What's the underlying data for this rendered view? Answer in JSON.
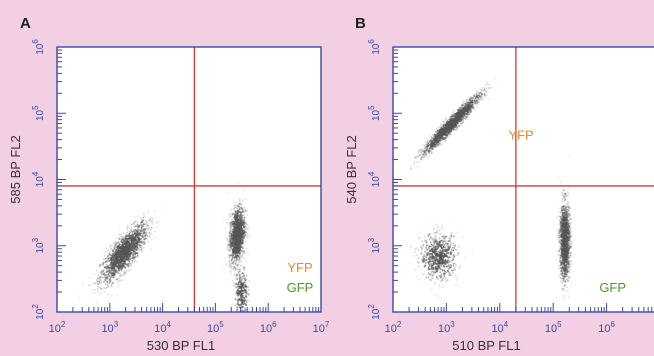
{
  "colors": {
    "background": "#f3cfe3",
    "plot_background": "#ffffff",
    "axis": "#3a4aa3",
    "gate": "#d03a3a",
    "yfp": "#e8892b",
    "gfp": "#4c9a2a",
    "dots": "#555555"
  },
  "chart_data": [
    {
      "type": "scatter",
      "panel_label": "A",
      "xlabel": "530 BP FL1",
      "ylabel": "585 BP FL2",
      "x_scale": "log",
      "y_scale": "log",
      "xlim": [
        100,
        10000000
      ],
      "ylim": [
        100,
        1000000
      ],
      "x_ticks": [
        {
          "base": "10",
          "exp": "2"
        },
        {
          "base": "10",
          "exp": "3"
        },
        {
          "base": "10",
          "exp": "4"
        },
        {
          "base": "10",
          "exp": "5"
        },
        {
          "base": "10",
          "exp": "6"
        },
        {
          "base": "10",
          "exp": "7"
        }
      ],
      "y_ticks": [
        {
          "base": "10",
          "exp": "2"
        },
        {
          "base": "10",
          "exp": "3"
        },
        {
          "base": "10",
          "exp": "4"
        },
        {
          "base": "10",
          "exp": "5"
        },
        {
          "base": "10",
          "exp": "6"
        }
      ],
      "gate": {
        "x": 40000,
        "y": 8000
      },
      "annotations": [
        {
          "text": "YFP",
          "x": 4000000,
          "y": 400,
          "color_key": "yfp"
        },
        {
          "text": "GFP",
          "x": 4000000,
          "y": 200,
          "color_key": "gfp"
        }
      ],
      "populations": [
        {
          "x_center": 1800,
          "y_center": 800,
          "x_spread_dec": 0.45,
          "y_spread_dec": 0.45,
          "correlated": true,
          "count": 1400
        },
        {
          "x_center": 250000,
          "y_center": 1500,
          "x_spread_dec": 0.15,
          "y_spread_dec": 0.7,
          "correlated": true,
          "count": 1100
        },
        {
          "x_center": 300000,
          "y_center": 200,
          "x_spread_dec": 0.12,
          "y_spread_dec": 0.4,
          "correlated": false,
          "count": 250
        }
      ]
    },
    {
      "type": "scatter",
      "panel_label": "B",
      "xlabel": "510 BP FL1",
      "ylabel": "540 BP FL2",
      "x_scale": "log",
      "y_scale": "log",
      "xlim": [
        100,
        10000000
      ],
      "ylim": [
        100,
        1000000
      ],
      "x_ticks": [
        {
          "base": "10",
          "exp": "2"
        },
        {
          "base": "10",
          "exp": "3"
        },
        {
          "base": "10",
          "exp": "4"
        },
        {
          "base": "10",
          "exp": "5"
        },
        {
          "base": "10",
          "exp": "6"
        }
      ],
      "y_ticks": [
        {
          "base": "10",
          "exp": "2"
        },
        {
          "base": "10",
          "exp": "3"
        },
        {
          "base": "10",
          "exp": "4"
        },
        {
          "base": "10",
          "exp": "5"
        },
        {
          "base": "10",
          "exp": "6"
        }
      ],
      "gate": {
        "x": 20000,
        "y": 8000
      },
      "annotations": [
        {
          "text": "YFP",
          "x": 25000,
          "y": 40000,
          "color_key": "yfp"
        },
        {
          "text": "GFP",
          "x": 1300000,
          "y": 200,
          "color_key": "gfp"
        }
      ],
      "populations": [
        {
          "x_center": 1200,
          "y_center": 70000,
          "x_spread_dec": 0.55,
          "y_spread_dec": 0.2,
          "correlated": true,
          "count": 1500
        },
        {
          "x_center": 700,
          "y_center": 700,
          "x_spread_dec": 0.35,
          "y_spread_dec": 0.35,
          "correlated": false,
          "count": 600
        },
        {
          "x_center": 160000,
          "y_center": 1200,
          "x_spread_dec": 0.1,
          "y_spread_dec": 0.6,
          "correlated": false,
          "count": 1100
        }
      ]
    }
  ]
}
